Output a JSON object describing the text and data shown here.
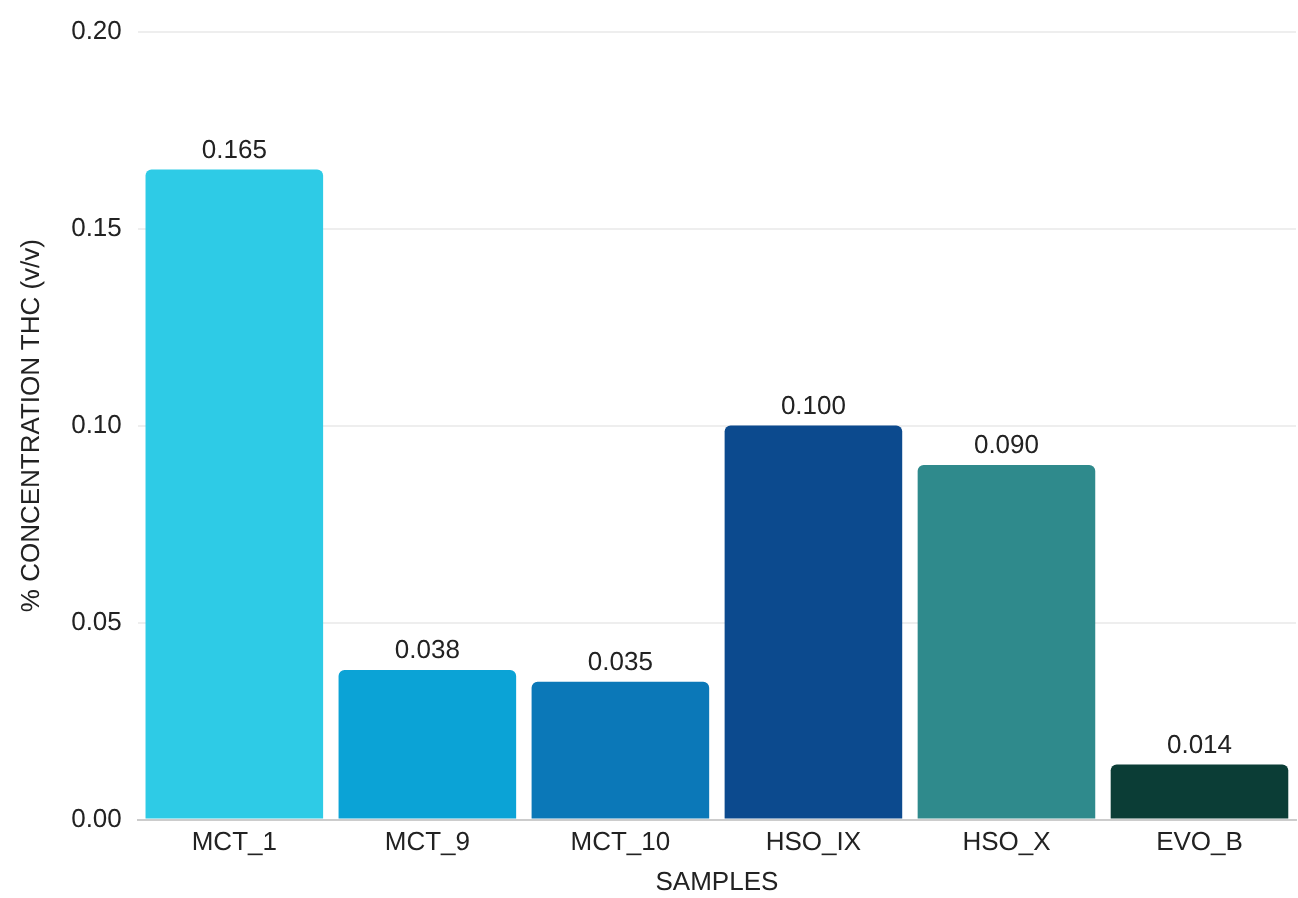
{
  "chart_data": {
    "type": "bar",
    "xlabel": "SAMPLES",
    "ylabel": "% CONCENTRATION THC (v/v)",
    "categories": [
      "MCT_1",
      "MCT_9",
      "MCT_10",
      "HSO_IX",
      "HSO_X",
      "EVO_B"
    ],
    "values": [
      0.165,
      0.038,
      0.035,
      0.1,
      0.09,
      0.014
    ],
    "value_labels": [
      "0.165",
      "0.038",
      "0.035",
      "0.100",
      "0.090",
      "0.014"
    ],
    "colors": [
      "#2ecbe6",
      "#0ba3d6",
      "#0b78b8",
      "#0c4a8e",
      "#2f8a8c",
      "#0b3d36"
    ],
    "ylim": [
      0,
      0.2
    ],
    "yticks": [
      {
        "value": 0,
        "label": "0.00"
      },
      {
        "value": 0.05,
        "label": "0.05"
      },
      {
        "value": 0.1,
        "label": "0.10"
      },
      {
        "value": 0.15,
        "label": "0.15"
      },
      {
        "value": 0.2,
        "label": "0.20"
      }
    ],
    "grid": "y",
    "legend": false
  }
}
